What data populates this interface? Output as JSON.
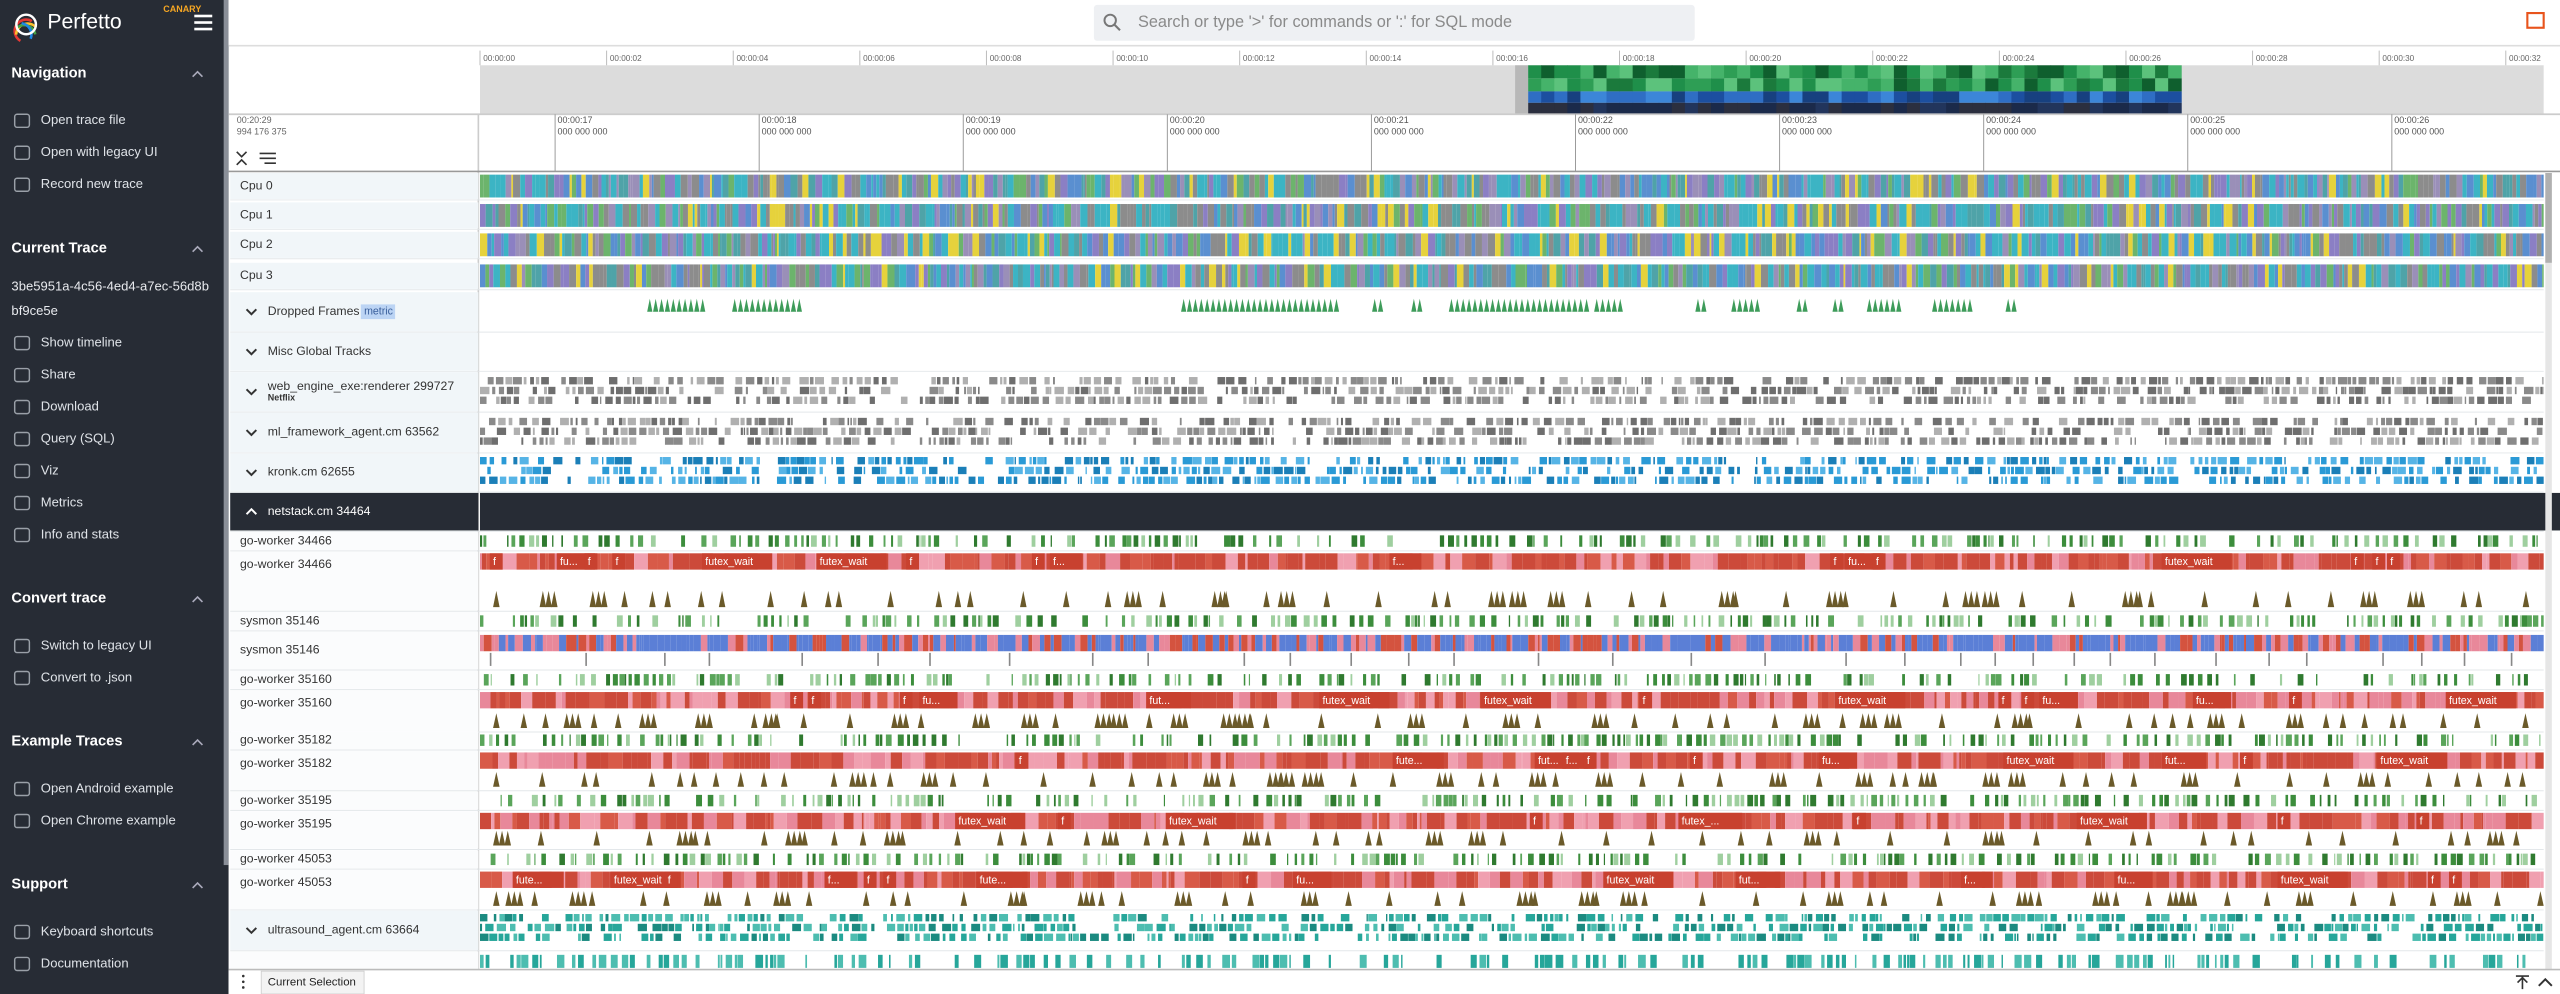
{
  "sidebar": {
    "brand": "Perfetto",
    "badge": "CANARY",
    "sections": [
      {
        "title": "Navigation",
        "items": [
          "Open trace file",
          "Open with legacy UI",
          "Record new trace"
        ]
      },
      {
        "title": "Current Trace",
        "trace_id": "3be5951a-4c56-4ed4-a7ec-56d8bbf9ce5e",
        "items": [
          "Show timeline",
          "Share",
          "Download",
          "Query (SQL)",
          "Viz",
          "Metrics",
          "Info and stats"
        ]
      },
      {
        "title": "Convert trace",
        "items": [
          "Switch to legacy UI",
          "Convert to .json"
        ]
      },
      {
        "title": "Example Traces",
        "items": [
          "Open Android example",
          "Open Chrome example"
        ]
      },
      {
        "title": "Support",
        "items": [
          "Keyboard shortcuts",
          "Documentation"
        ]
      }
    ]
  },
  "search": {
    "placeholder": "Search or type '>' for commands or ':' for SQL mode"
  },
  "overview": {
    "ticks": [
      "00:00:00",
      "00:00:02",
      "00:00:04",
      "00:00:06",
      "00:00:08",
      "00:00:10",
      "00:00:12",
      "00:00:14",
      "00:00:16",
      "00:00:18",
      "00:00:20",
      "00:00:22",
      "00:00:24",
      "00:00:26",
      "00:00:28",
      "00:00:30",
      "00:00:32"
    ]
  },
  "ruler": {
    "offset": "00:20:29",
    "offset_ns": "994 176 375",
    "ticks": [
      {
        "time": "00:00:17",
        "ns": "000 000 000"
      },
      {
        "time": "00:00:18",
        "ns": "000 000 000"
      },
      {
        "time": "00:00:19",
        "ns": "000 000 000"
      },
      {
        "time": "00:00:20",
        "ns": "000 000 000"
      },
      {
        "time": "00:00:21",
        "ns": "000 000 000"
      },
      {
        "time": "00:00:22",
        "ns": "000 000 000"
      },
      {
        "time": "00:00:23",
        "ns": "000 000 000"
      },
      {
        "time": "00:00:24",
        "ns": "000 000 000"
      },
      {
        "time": "00:00:25",
        "ns": "000 000 000"
      },
      {
        "time": "00:00:26",
        "ns": "000 000 000"
      }
    ]
  },
  "tracks": [
    {
      "name": "Cpu 0"
    },
    {
      "name": "Cpu 1"
    },
    {
      "name": "Cpu 2"
    },
    {
      "name": "Cpu 3"
    },
    {
      "name": "Dropped Frames",
      "tag": "metric"
    },
    {
      "name": "Misc Global Tracks"
    },
    {
      "name": "web_engine_exe:renderer 299727",
      "subtitle": "Netflix"
    },
    {
      "name": "ml_framework_agent.cm 63562"
    },
    {
      "name": "kronk.cm 62655"
    },
    {
      "name": "netstack.cm 34464"
    },
    {
      "name": "go-worker 34466"
    },
    {
      "name": "go-worker 34466",
      "slices": [
        "f",
        "fu...",
        "f",
        "f",
        "futex_wait",
        "futex_wait",
        "f",
        "f",
        "f...",
        "f...",
        "f",
        "fu...",
        "f",
        "futex_wait",
        "f",
        "f",
        "f"
      ]
    },
    {
      "name": "sysmon 35146"
    },
    {
      "name": "sysmon 35146"
    },
    {
      "name": "go-worker 35160"
    },
    {
      "name": "go-worker 35160",
      "slices": [
        "f",
        "f",
        "f",
        "fu...",
        "fut...",
        "futex_wait",
        "futex_wait",
        "f",
        "futex_wait",
        "f",
        "f",
        "fu...",
        "fu...",
        "f",
        "futex_wait"
      ]
    },
    {
      "name": "go-worker 35182"
    },
    {
      "name": "go-worker 35182",
      "slices": [
        "f",
        "fute...",
        "fut...",
        "f...",
        "f",
        "f",
        "fu...",
        "futex_wait",
        "fut...",
        "f",
        "futex_wait"
      ]
    },
    {
      "name": "go-worker 35195"
    },
    {
      "name": "go-worker 35195",
      "slices": [
        "futex_wait",
        "f",
        "futex_wait",
        "f",
        "futex_...",
        "f",
        "futex_wait",
        "f",
        "f"
      ]
    },
    {
      "name": "go-worker 45053"
    },
    {
      "name": "go-worker 45053",
      "slices": [
        "fute...",
        "futex_wait",
        "f",
        "f...",
        "f",
        "f",
        "fute...",
        "f",
        "fu...",
        "futex_wait",
        "fut...",
        "f...",
        "fu...",
        "futex_wait",
        "f",
        "f"
      ]
    },
    {
      "name": "ultrasound_agent.cm 63664"
    }
  ],
  "footer": {
    "tab": "Current Selection"
  }
}
